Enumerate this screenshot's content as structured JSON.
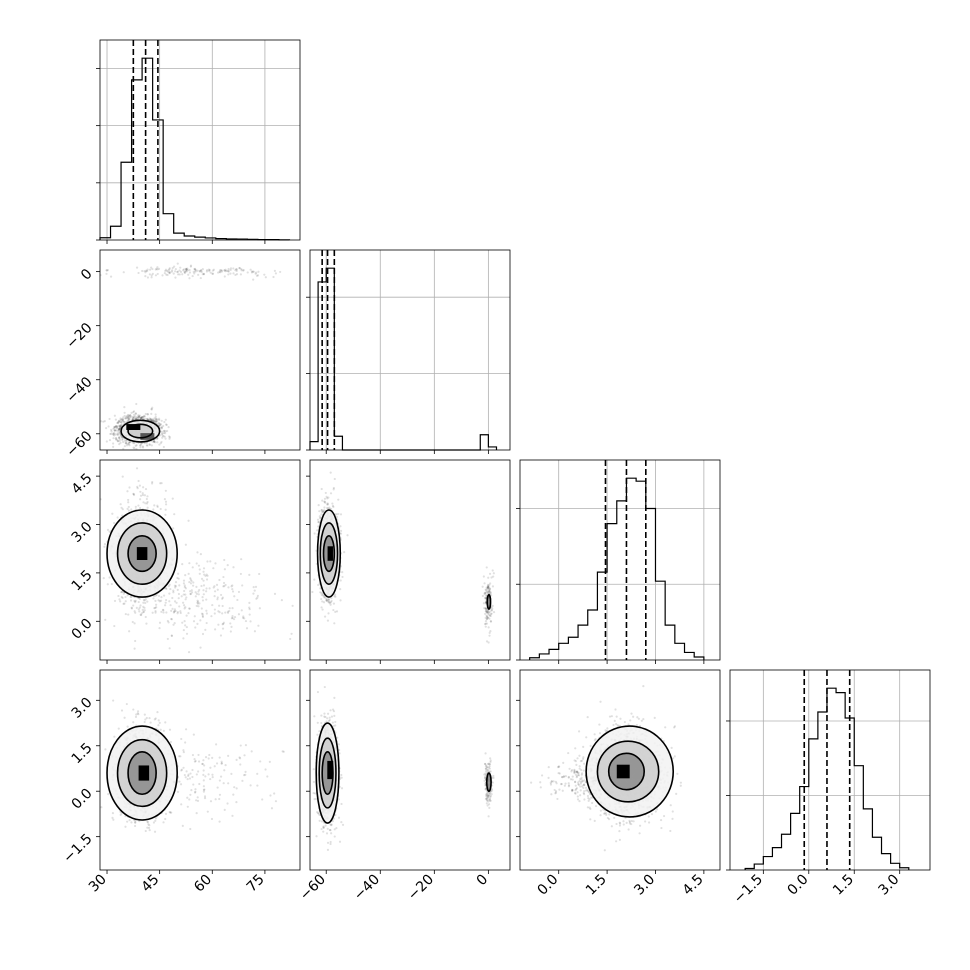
{
  "chart_data": {
    "type": "corner",
    "grid": true,
    "parameters": [
      {
        "range": [
          28,
          85
        ],
        "ticks": [
          30,
          45,
          60,
          75
        ],
        "tick_labels": [
          "30",
          "45",
          "60",
          "75"
        ],
        "quantiles": [
          37.5,
          41.0,
          44.5
        ],
        "histogram": {
          "bins": [
            28,
            31,
            34,
            37,
            40,
            43,
            46,
            49,
            52,
            55,
            58,
            61,
            64,
            67,
            70,
            73,
            76,
            79,
            82
          ],
          "counts": [
            20,
            120,
            680,
            1400,
            1590,
            1050,
            230,
            60,
            35,
            25,
            18,
            12,
            9,
            8,
            6,
            4,
            3,
            1
          ]
        }
      },
      {
        "range": [
          -66,
          8
        ],
        "ticks": [
          0,
          -20,
          -40,
          -60
        ],
        "tick_labels": [
          "0",
          "−20",
          "−40",
          "−60"
        ],
        "quantiles": [
          -61.5,
          -59.5,
          -57.0
        ],
        "histogram": {
          "bins": [
            -66,
            -63,
            -60,
            -57,
            -54,
            -51,
            -48,
            -45,
            -42,
            -39,
            -36,
            -33,
            -30,
            -27,
            -24,
            -21,
            -18,
            -15,
            -12,
            -9,
            -6,
            -3,
            0,
            3
          ],
          "counts": [
            55,
            1100,
            1190,
            90,
            0,
            0,
            0,
            0,
            0,
            0,
            0,
            0,
            0,
            0,
            0,
            0,
            0,
            0,
            0,
            0,
            0,
            100,
            20
          ]
        }
      },
      {
        "range": [
          -1.2,
          5.0
        ],
        "ticks": [
          0.0,
          1.5,
          3.0,
          4.5
        ],
        "tick_labels": [
          "0.0",
          "1.5",
          "3.0",
          "4.5"
        ],
        "quantiles": [
          1.45,
          2.1,
          2.7
        ],
        "histogram": {
          "bins": [
            -0.9,
            -0.6,
            -0.3,
            0.0,
            0.3,
            0.6,
            0.9,
            1.2,
            1.5,
            1.8,
            2.1,
            2.4,
            2.7,
            3.0,
            3.3,
            3.6,
            3.9,
            4.2,
            4.5
          ],
          "counts": [
            15,
            40,
            70,
            110,
            150,
            230,
            330,
            580,
            900,
            1050,
            1200,
            1180,
            1000,
            520,
            230,
            110,
            50,
            20
          ]
        }
      },
      {
        "range": [
          -2.6,
          4.0
        ],
        "ticks": [
          -1.5,
          0.0,
          1.5,
          3.0
        ],
        "tick_labels": [
          "−1.5",
          "0.0",
          "1.5",
          "3.0"
        ],
        "quantiles": [
          -0.15,
          0.6,
          1.35
        ],
        "histogram": {
          "bins": [
            -2.1,
            -1.8,
            -1.5,
            -1.2,
            -0.9,
            -0.6,
            -0.3,
            0.0,
            0.3,
            0.6,
            0.9,
            1.2,
            1.5,
            1.8,
            2.1,
            2.4,
            2.7,
            3.0,
            3.3
          ],
          "counts": [
            10,
            40,
            90,
            150,
            240,
            380,
            560,
            880,
            1060,
            1220,
            1190,
            1020,
            700,
            410,
            220,
            110,
            45,
            15
          ]
        }
      }
    ],
    "pairs": [
      {
        "row": 1,
        "col": 0,
        "blobs": [
          {
            "x": 39,
            "y": -58.5,
            "sx": 3.2,
            "sy": 2.5,
            "w": 0.9
          },
          {
            "x": 55,
            "y": 0,
            "sx": 12,
            "sy": 1.0,
            "w": 0.1
          }
        ],
        "contours": [
          {
            "x": 39.5,
            "y": -59,
            "rx": 5.5,
            "ry": 4.0
          },
          {
            "x": 39.5,
            "y": -59,
            "rx": 3.5,
            "ry": 2.5
          }
        ],
        "cores": [
          {
            "x": 37.5,
            "y": -57.5,
            "w": 4,
            "h": 2.2,
            "shade": "#000000"
          },
          {
            "x": 41.5,
            "y": -61,
            "w": 4,
            "h": 2.5,
            "shade": "#555555"
          }
        ]
      },
      {
        "row": 2,
        "col": 0,
        "blobs": [
          {
            "x": 40,
            "y": 2.1,
            "sx": 3.5,
            "sy": 0.8,
            "w": 0.8
          },
          {
            "x": 55,
            "y": 0.7,
            "sx": 10,
            "sy": 0.6,
            "w": 0.2
          }
        ],
        "contours": [
          {
            "x": 40,
            "y": 2.1,
            "rx": 10,
            "ry": 1.35
          },
          {
            "x": 40,
            "y": 2.1,
            "rx": 7,
            "ry": 0.95
          },
          {
            "x": 40,
            "y": 2.1,
            "rx": 4,
            "ry": 0.55
          }
        ],
        "cores": [
          {
            "x": 40,
            "y": 2.1,
            "w": 3,
            "h": 0.4,
            "shade": "#000000"
          }
        ]
      },
      {
        "row": 2,
        "col": 1,
        "blobs": [
          {
            "x": -59,
            "y": 2.1,
            "sx": 1.8,
            "sy": 0.7,
            "w": 0.88
          },
          {
            "x": 0,
            "y": 0.6,
            "sx": 0.8,
            "sy": 0.45,
            "w": 0.12
          }
        ],
        "contours": [
          {
            "x": -59,
            "y": 2.1,
            "rx": 4.2,
            "ry": 1.35
          },
          {
            "x": -59,
            "y": 2.1,
            "rx": 3.2,
            "ry": 0.95
          },
          {
            "x": -59,
            "y": 2.1,
            "rx": 2.0,
            "ry": 0.55
          },
          {
            "x": 0.2,
            "y": 0.6,
            "rx": 0.6,
            "ry": 0.22
          }
        ],
        "cores": [
          {
            "x": -58.5,
            "y": 2.1,
            "w": 2,
            "h": 0.45,
            "shade": "#000000"
          }
        ]
      },
      {
        "row": 3,
        "col": 0,
        "blobs": [
          {
            "x": 40,
            "y": 0.6,
            "sx": 3.5,
            "sy": 0.75,
            "w": 0.85
          },
          {
            "x": 55,
            "y": 0.5,
            "sx": 10,
            "sy": 0.6,
            "w": 0.15
          }
        ],
        "contours": [
          {
            "x": 40,
            "y": 0.6,
            "rx": 10,
            "ry": 1.55
          },
          {
            "x": 40,
            "y": 0.6,
            "rx": 7,
            "ry": 1.1
          },
          {
            "x": 40,
            "y": 0.6,
            "rx": 4,
            "ry": 0.7
          }
        ],
        "cores": [
          {
            "x": 40.5,
            "y": 0.6,
            "w": 3,
            "h": 0.5,
            "shade": "#000000"
          }
        ]
      },
      {
        "row": 3,
        "col": 1,
        "blobs": [
          {
            "x": -59.5,
            "y": 0.6,
            "sx": 1.8,
            "sy": 0.75,
            "w": 0.88
          },
          {
            "x": 0,
            "y": 0.3,
            "sx": 0.7,
            "sy": 0.4,
            "w": 0.12
          }
        ],
        "contours": [
          {
            "x": -59.5,
            "y": 0.6,
            "rx": 4.2,
            "ry": 1.65
          },
          {
            "x": -59.5,
            "y": 0.6,
            "rx": 3.1,
            "ry": 1.15
          },
          {
            "x": -59.5,
            "y": 0.6,
            "rx": 2.0,
            "ry": 0.7
          },
          {
            "x": 0.2,
            "y": 0.3,
            "rx": 0.8,
            "ry": 0.3
          }
        ],
        "cores": [
          {
            "x": -58.5,
            "y": 0.7,
            "w": 2.2,
            "h": 0.6,
            "shade": "#000000"
          }
        ]
      },
      {
        "row": 3,
        "col": 2,
        "blobs": [
          {
            "x": 2.1,
            "y": 0.6,
            "sx": 0.6,
            "sy": 0.75,
            "w": 0.9
          },
          {
            "x": 0.6,
            "y": 0.3,
            "sx": 0.5,
            "sy": 0.3,
            "w": 0.1
          }
        ],
        "contours": [
          {
            "x": 2.2,
            "y": 0.65,
            "rx": 1.35,
            "ry": 1.5
          },
          {
            "x": 2.15,
            "y": 0.65,
            "rx": 0.95,
            "ry": 1.0
          },
          {
            "x": 2.1,
            "y": 0.65,
            "rx": 0.55,
            "ry": 0.6
          }
        ],
        "cores": [
          {
            "x": 2.0,
            "y": 0.65,
            "w": 0.4,
            "h": 0.45,
            "shade": "#000000"
          }
        ]
      }
    ]
  }
}
